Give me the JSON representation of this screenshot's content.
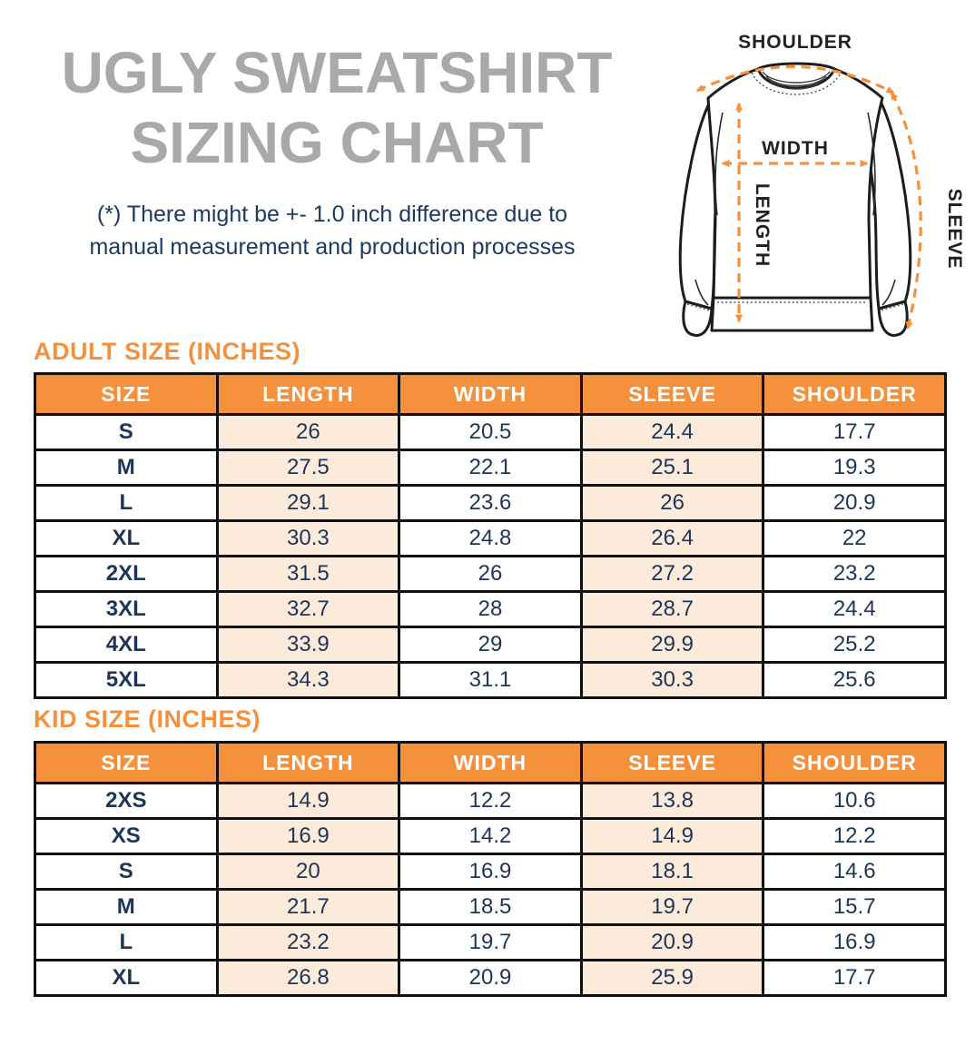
{
  "page": {
    "title_line1": "UGLY SWEATSHIRT",
    "title_line2": "SIZING CHART",
    "disclaimer_line1": "(*) There might be +- 1.0 inch difference due to",
    "disclaimer_line2": "manual measurement and production processes"
  },
  "colors": {
    "accent_orange": "#f5913d",
    "title_gray": "#a8a9ab",
    "text_navy": "#1d3557",
    "cell_peach": "#fcebdb",
    "table_border": "#101010"
  },
  "diagram": {
    "shoulder_label": "SHOULDER",
    "width_label": "WIDTH",
    "length_label": "LENGTH",
    "sleeve_label": "SLEEVE"
  },
  "adult_table": {
    "heading": "ADULT SIZE (INCHES)",
    "columns": [
      "SIZE",
      "LENGTH",
      "WIDTH",
      "SLEEVE",
      "SHOULDER"
    ],
    "rows": [
      {
        "size": "S",
        "length": "26",
        "width": "20.5",
        "sleeve": "24.4",
        "shoulder": "17.7"
      },
      {
        "size": "M",
        "length": "27.5",
        "width": "22.1",
        "sleeve": "25.1",
        "shoulder": "19.3"
      },
      {
        "size": "L",
        "length": "29.1",
        "width": "23.6",
        "sleeve": "26",
        "shoulder": "20.9"
      },
      {
        "size": "XL",
        "length": "30.3",
        "width": "24.8",
        "sleeve": "26.4",
        "shoulder": "22"
      },
      {
        "size": "2XL",
        "length": "31.5",
        "width": "26",
        "sleeve": "27.2",
        "shoulder": "23.2"
      },
      {
        "size": "3XL",
        "length": "32.7",
        "width": "28",
        "sleeve": "28.7",
        "shoulder": "24.4"
      },
      {
        "size": "4XL",
        "length": "33.9",
        "width": "29",
        "sleeve": "29.9",
        "shoulder": "25.2"
      },
      {
        "size": "5XL",
        "length": "34.3",
        "width": "31.1",
        "sleeve": "30.3",
        "shoulder": "25.6"
      }
    ]
  },
  "kid_table": {
    "heading": "KID SIZE (INCHES)",
    "columns": [
      "SIZE",
      "LENGTH",
      "WIDTH",
      "SLEEVE",
      "SHOULDER"
    ],
    "rows": [
      {
        "size": "2XS",
        "length": "14.9",
        "width": "12.2",
        "sleeve": "13.8",
        "shoulder": "10.6"
      },
      {
        "size": "XS",
        "length": "16.9",
        "width": "14.2",
        "sleeve": "14.9",
        "shoulder": "12.2"
      },
      {
        "size": "S",
        "length": "20",
        "width": "16.9",
        "sleeve": "18.1",
        "shoulder": "14.6"
      },
      {
        "size": "M",
        "length": "21.7",
        "width": "18.5",
        "sleeve": "19.7",
        "shoulder": "15.7"
      },
      {
        "size": "L",
        "length": "23.2",
        "width": "19.7",
        "sleeve": "20.9",
        "shoulder": "16.9"
      },
      {
        "size": "XL",
        "length": "26.8",
        "width": "20.9",
        "sleeve": "25.9",
        "shoulder": "17.7"
      }
    ]
  }
}
